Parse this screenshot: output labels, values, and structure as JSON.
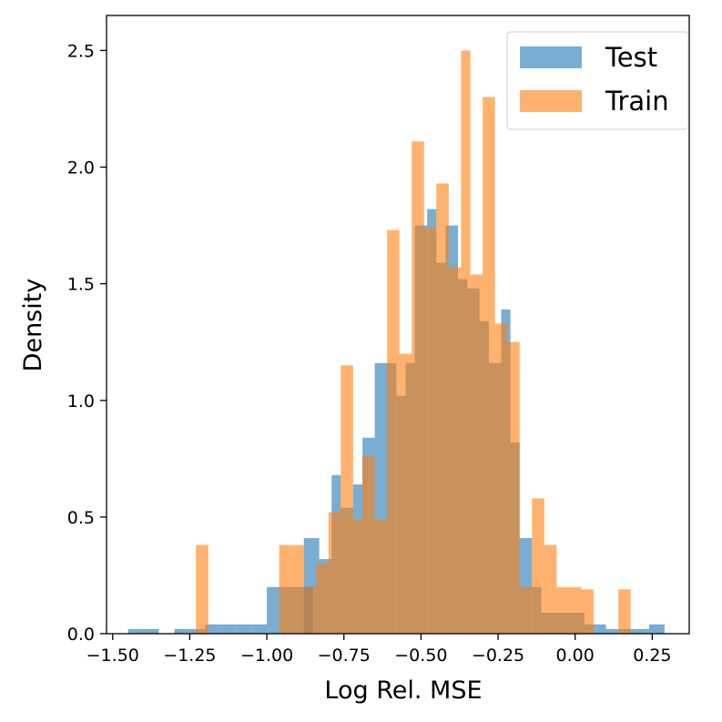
{
  "chart_data": {
    "type": "histogram",
    "title": "",
    "xlabel": "Log Rel. MSE",
    "ylabel": "Density",
    "xlim": [
      -1.52,
      0.37
    ],
    "ylim": [
      0,
      2.65
    ],
    "grid": false,
    "legend_placement": "top-right",
    "xticks": [
      -1.5,
      -1.25,
      -1.0,
      -0.75,
      -0.5,
      -0.25,
      0.0,
      0.25
    ],
    "xtick_labels": [
      "−1.50",
      "−1.25",
      "−1.00",
      "−0.75",
      "−0.50",
      "−0.25",
      "0.00",
      "0.25"
    ],
    "yticks": [
      0.0,
      0.5,
      1.0,
      1.5,
      2.0,
      2.5
    ],
    "ytick_labels": [
      "0.0",
      "0.5",
      "1.0",
      "1.5",
      "2.0",
      "2.5"
    ],
    "series": [
      {
        "name": "Test",
        "color": "#1f77b4",
        "alpha": 0.6,
        "bins": [
          [
            -1.45,
            -1.4,
            0.02
          ],
          [
            -1.4,
            -1.35,
            0.02
          ],
          [
            -1.3,
            -1.25,
            0.02
          ],
          [
            -1.25,
            -1.2,
            0.02
          ],
          [
            -1.2,
            -1.15,
            0.04
          ],
          [
            -1.15,
            -1.1,
            0.04
          ],
          [
            -1.1,
            -1.05,
            0.04
          ],
          [
            -1.05,
            -1.0,
            0.04
          ],
          [
            -1.0,
            -0.95,
            0.2
          ],
          [
            -0.95,
            -0.9,
            0.2
          ],
          [
            -0.9,
            -0.85,
            0.2
          ],
          [
            -0.88,
            -0.83,
            0.41
          ],
          [
            -0.83,
            -0.79,
            0.32
          ],
          [
            -0.79,
            -0.76,
            0.68
          ],
          [
            -0.76,
            -0.72,
            0.54
          ],
          [
            -0.72,
            -0.69,
            0.64
          ],
          [
            -0.69,
            -0.65,
            0.84
          ],
          [
            -0.65,
            -0.62,
            1.16
          ],
          [
            -0.62,
            -0.58,
            1.16
          ],
          [
            -0.58,
            -0.55,
            1.02
          ],
          [
            -0.55,
            -0.52,
            1.16
          ],
          [
            -0.52,
            -0.48,
            1.75
          ],
          [
            -0.48,
            -0.45,
            1.82
          ],
          [
            -0.45,
            -0.42,
            1.59
          ],
          [
            -0.42,
            -0.38,
            1.75
          ],
          [
            -0.38,
            -0.35,
            1.52
          ],
          [
            -0.35,
            -0.31,
            1.48
          ],
          [
            -0.31,
            -0.28,
            1.34
          ],
          [
            -0.28,
            -0.24,
            1.16
          ],
          [
            -0.24,
            -0.21,
            1.39
          ],
          [
            -0.21,
            -0.18,
            0.82
          ],
          [
            -0.18,
            -0.14,
            0.41
          ],
          [
            -0.14,
            -0.11,
            0.2
          ],
          [
            -0.11,
            -0.07,
            0.09
          ],
          [
            -0.07,
            -0.04,
            0.09
          ],
          [
            -0.04,
            0.0,
            0.09
          ],
          [
            0.0,
            0.03,
            0.09
          ],
          [
            0.03,
            0.07,
            0.04
          ],
          [
            0.07,
            0.1,
            0.04
          ],
          [
            0.1,
            0.14,
            0.02
          ],
          [
            0.14,
            0.2,
            0.02
          ],
          [
            0.2,
            0.24,
            0.02
          ],
          [
            0.24,
            0.29,
            0.04
          ]
        ]
      },
      {
        "name": "Train",
        "color": "#ff7f0e",
        "alpha": 0.6,
        "bins": [
          [
            -1.23,
            -1.19,
            0.38
          ],
          [
            -0.96,
            -0.92,
            0.38
          ],
          [
            -0.92,
            -0.88,
            0.38
          ],
          [
            -0.88,
            -0.84,
            0.2
          ],
          [
            -0.84,
            -0.8,
            0.3
          ],
          [
            -0.8,
            -0.76,
            0.52
          ],
          [
            -0.76,
            -0.72,
            1.15
          ],
          [
            -0.72,
            -0.69,
            0.49
          ],
          [
            -0.69,
            -0.65,
            0.76
          ],
          [
            -0.65,
            -0.61,
            0.49
          ],
          [
            -0.61,
            -0.57,
            1.73
          ],
          [
            -0.57,
            -0.53,
            1.2
          ],
          [
            -0.53,
            -0.49,
            2.11
          ],
          [
            -0.49,
            -0.45,
            1.74
          ],
          [
            -0.45,
            -0.41,
            1.93
          ],
          [
            -0.41,
            -0.37,
            1.57
          ],
          [
            -0.37,
            -0.34,
            2.5
          ],
          [
            -0.34,
            -0.3,
            1.54
          ],
          [
            -0.3,
            -0.26,
            2.3
          ],
          [
            -0.26,
            -0.22,
            1.33
          ],
          [
            -0.22,
            -0.18,
            1.25
          ],
          [
            -0.18,
            -0.14,
            0.2
          ],
          [
            -0.14,
            -0.1,
            0.58
          ],
          [
            -0.1,
            -0.06,
            0.38
          ],
          [
            -0.06,
            -0.02,
            0.2
          ],
          [
            -0.02,
            0.02,
            0.2
          ],
          [
            0.02,
            0.06,
            0.19
          ],
          [
            0.14,
            0.18,
            0.19
          ]
        ]
      }
    ]
  }
}
